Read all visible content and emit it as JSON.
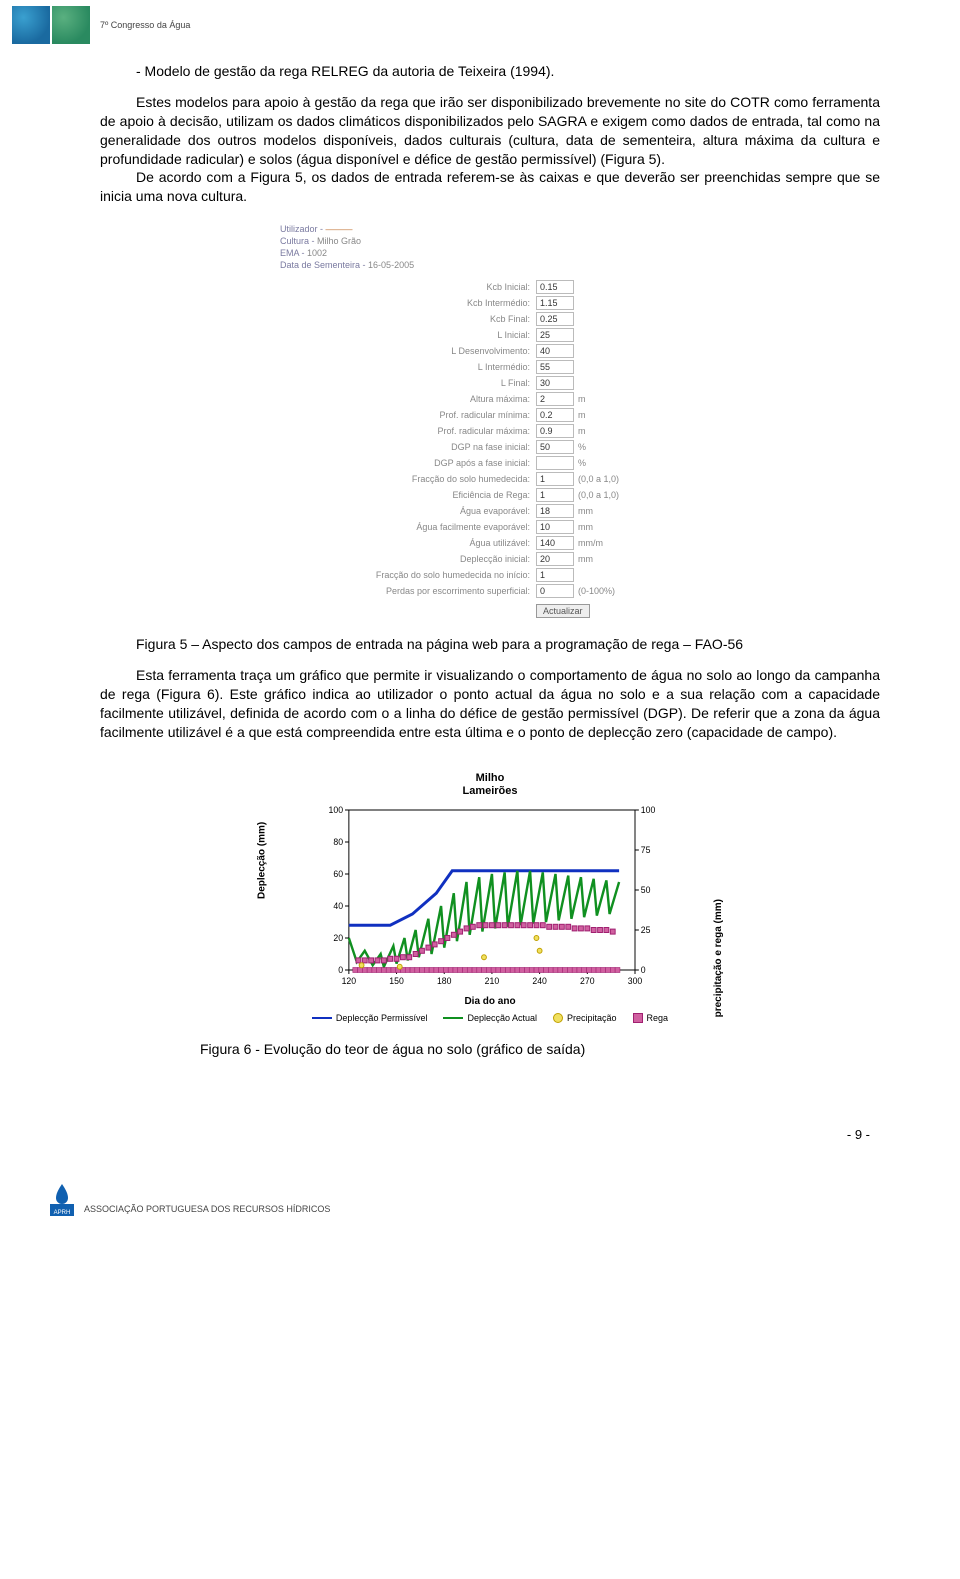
{
  "header": {
    "label": "7º Congresso da Água",
    "thumbs": [
      {
        "bg": "#1a6aa0",
        "overlay": "#3aa0d0"
      },
      {
        "bg": "#2a8a60",
        "overlay": "#5ab080"
      }
    ]
  },
  "body": {
    "bullet": "- Modelo de gestão da rega RELREG da autoria de Teixeira (1994).",
    "p1": "Estes modelos para apoio à gestão da rega que irão ser disponibilizado brevemente no site do COTR como ferramenta de apoio à decisão, utilizam os dados climáticos disponibilizados pelo SAGRA e exigem como dados de entrada, tal como na generalidade dos outros modelos disponíveis, dados culturais (cultura, data de sementeira, altura máxima da cultura e profundidade radicular) e solos (água disponível e défice de gestão permissível) (Figura 5).",
    "p2": "De acordo com a Figura 5, os dados de entrada referem-se às caixas e que deverão ser preenchidas sempre que se inicia uma nova cultura.",
    "fig5_caption": "Figura 5 – Aspecto dos campos de entrada na página web para a programação de rega – FAO-56",
    "p3": "Esta ferramenta traça um gráfico que permite ir visualizando o comportamento de água no solo ao longo da campanha de rega (Figura 6). Este gráfico indica ao utilizador o ponto actual da água no solo e a sua relação com a capacidade facilmente utilizável, definida de acordo com o a linha do défice de gestão permissível (DGP). De referir que a zona da água facilmente utilizável é a que está compreendida entre esta última e o ponto de deplecção zero (capacidade de campo).",
    "fig6_caption": "Figura 6 - Evolução do teor de água no solo (gráfico de saída)"
  },
  "form": {
    "meta": [
      {
        "label": "Utilizador - ",
        "value": "———",
        "cls": "val"
      },
      {
        "label": "Cultura - ",
        "value": "Milho Grão",
        "cls": "val2"
      },
      {
        "label": "EMA - ",
        "value": "1002",
        "cls": "val2"
      },
      {
        "label": "Data de Sementeira - ",
        "value": "16-05-2005",
        "cls": "val2"
      }
    ],
    "rows": [
      {
        "label": "Kcb Inicial:",
        "value": "0.15",
        "unit": ""
      },
      {
        "label": "Kcb Intermédio:",
        "value": "1.15",
        "unit": ""
      },
      {
        "label": "Kcb Final:",
        "value": "0.25",
        "unit": ""
      },
      {
        "label": "L Inicial:",
        "value": "25",
        "unit": ""
      },
      {
        "label": "L Desenvolvimento:",
        "value": "40",
        "unit": ""
      },
      {
        "label": "L Intermédio:",
        "value": "55",
        "unit": ""
      },
      {
        "label": "L Final:",
        "value": "30",
        "unit": ""
      },
      {
        "label": "Altura máxima:",
        "value": "2",
        "unit": "m"
      },
      {
        "label": "Prof. radicular mínima:",
        "value": "0.2",
        "unit": "m"
      },
      {
        "label": "Prof. radicular máxima:",
        "value": "0.9",
        "unit": "m"
      },
      {
        "label": "DGP na fase inicial:",
        "value": "50",
        "unit": "%"
      },
      {
        "label": "DGP após a fase inicial:",
        "value": "",
        "unit": "%"
      },
      {
        "label": "Fracção do solo humedecida:",
        "value": "1",
        "unit": "(0,0 a 1,0)"
      },
      {
        "label": "Eficiência de Rega:",
        "value": "1",
        "unit": "(0,0 a 1,0)"
      },
      {
        "label": "Água evaporável:",
        "value": "18",
        "unit": "mm"
      },
      {
        "label": "Água facilmente evaporável:",
        "value": "10",
        "unit": "mm"
      },
      {
        "label": "Água utilizável:",
        "value": "140",
        "unit": "mm/m"
      },
      {
        "label": "Deplecção inicial:",
        "value": "20",
        "unit": "mm"
      },
      {
        "label": "Fracção do solo humedecida no início:",
        "value": "1",
        "unit": ""
      },
      {
        "label": "Perdas por escorrimento superficial:",
        "value": "0",
        "unit": "(0-100%)"
      }
    ],
    "button": "Actualizar"
  },
  "chart": {
    "title_line1": "Milho",
    "title_line2": "Lameirões",
    "y_left_label": "Deplecção (mm)",
    "y_right_label": "precipitação e rega (mm)",
    "x_label": "Dia do ano",
    "x_min": 120,
    "x_max": 300,
    "y_left_min": 0,
    "y_left_max": 100,
    "y_right_min": 0,
    "y_right_max": 100,
    "x_ticks": [
      120,
      150,
      180,
      210,
      240,
      270,
      300
    ],
    "y_left_ticks": [
      0,
      20,
      40,
      60,
      80,
      100
    ],
    "y_right_ticks": [
      0,
      25,
      50,
      75,
      100
    ],
    "colors": {
      "perm": "#1030c0",
      "actual": "#109020",
      "precip_stroke": "#c0a000",
      "precip_fill": "#f0e060",
      "rega_stroke": "#a02070",
      "rega_fill": "#d060a0",
      "axis": "#000000",
      "grid": "#000000"
    },
    "line_width_perm": 3,
    "line_width_actual": 2.5,
    "marker_size": 5,
    "series_perm": [
      {
        "x": 120,
        "y": 28
      },
      {
        "x": 145,
        "y": 28
      },
      {
        "x": 146,
        "y": 28
      },
      {
        "x": 160,
        "y": 35
      },
      {
        "x": 175,
        "y": 48
      },
      {
        "x": 185,
        "y": 62
      },
      {
        "x": 186,
        "y": 62
      },
      {
        "x": 290,
        "y": 62
      }
    ],
    "series_actual": [
      {
        "x": 120,
        "y": 20
      },
      {
        "x": 125,
        "y": 5
      },
      {
        "x": 130,
        "y": 12
      },
      {
        "x": 135,
        "y": 3
      },
      {
        "x": 140,
        "y": 10
      },
      {
        "x": 142,
        "y": 2
      },
      {
        "x": 148,
        "y": 15
      },
      {
        "x": 150,
        "y": 4
      },
      {
        "x": 155,
        "y": 20
      },
      {
        "x": 157,
        "y": 6
      },
      {
        "x": 162,
        "y": 25
      },
      {
        "x": 164,
        "y": 8
      },
      {
        "x": 170,
        "y": 32
      },
      {
        "x": 172,
        "y": 10
      },
      {
        "x": 178,
        "y": 40
      },
      {
        "x": 180,
        "y": 14
      },
      {
        "x": 186,
        "y": 48
      },
      {
        "x": 188,
        "y": 18
      },
      {
        "x": 194,
        "y": 55
      },
      {
        "x": 196,
        "y": 22
      },
      {
        "x": 202,
        "y": 58
      },
      {
        "x": 204,
        "y": 24
      },
      {
        "x": 210,
        "y": 60
      },
      {
        "x": 212,
        "y": 26
      },
      {
        "x": 218,
        "y": 61
      },
      {
        "x": 220,
        "y": 27
      },
      {
        "x": 226,
        "y": 62
      },
      {
        "x": 228,
        "y": 28
      },
      {
        "x": 234,
        "y": 62
      },
      {
        "x": 236,
        "y": 29
      },
      {
        "x": 242,
        "y": 61
      },
      {
        "x": 244,
        "y": 30
      },
      {
        "x": 250,
        "y": 60
      },
      {
        "x": 252,
        "y": 31
      },
      {
        "x": 258,
        "y": 59
      },
      {
        "x": 260,
        "y": 32
      },
      {
        "x": 266,
        "y": 58
      },
      {
        "x": 268,
        "y": 33
      },
      {
        "x": 274,
        "y": 57
      },
      {
        "x": 276,
        "y": 34
      },
      {
        "x": 282,
        "y": 56
      },
      {
        "x": 284,
        "y": 35
      },
      {
        "x": 290,
        "y": 55
      }
    ],
    "series_precip": [
      {
        "x": 128,
        "y": 3
      },
      {
        "x": 152,
        "y": 2
      },
      {
        "x": 205,
        "y": 8
      },
      {
        "x": 238,
        "y": 20
      },
      {
        "x": 240,
        "y": 12
      }
    ],
    "series_rega": [
      {
        "x": 126,
        "y": 6
      },
      {
        "x": 130,
        "y": 6
      },
      {
        "x": 134,
        "y": 6
      },
      {
        "x": 138,
        "y": 6
      },
      {
        "x": 142,
        "y": 6
      },
      {
        "x": 146,
        "y": 7
      },
      {
        "x": 150,
        "y": 7
      },
      {
        "x": 154,
        "y": 8
      },
      {
        "x": 158,
        "y": 8
      },
      {
        "x": 162,
        "y": 10
      },
      {
        "x": 166,
        "y": 12
      },
      {
        "x": 170,
        "y": 14
      },
      {
        "x": 174,
        "y": 16
      },
      {
        "x": 178,
        "y": 18
      },
      {
        "x": 182,
        "y": 20
      },
      {
        "x": 186,
        "y": 22
      },
      {
        "x": 190,
        "y": 24
      },
      {
        "x": 194,
        "y": 26
      },
      {
        "x": 198,
        "y": 27
      },
      {
        "x": 202,
        "y": 28
      },
      {
        "x": 206,
        "y": 28
      },
      {
        "x": 210,
        "y": 28
      },
      {
        "x": 214,
        "y": 28
      },
      {
        "x": 218,
        "y": 28
      },
      {
        "x": 222,
        "y": 28
      },
      {
        "x": 226,
        "y": 28
      },
      {
        "x": 230,
        "y": 28
      },
      {
        "x": 234,
        "y": 28
      },
      {
        "x": 238,
        "y": 28
      },
      {
        "x": 242,
        "y": 28
      },
      {
        "x": 246,
        "y": 27
      },
      {
        "x": 250,
        "y": 27
      },
      {
        "x": 254,
        "y": 27
      },
      {
        "x": 258,
        "y": 27
      },
      {
        "x": 262,
        "y": 26
      },
      {
        "x": 266,
        "y": 26
      },
      {
        "x": 270,
        "y": 26
      },
      {
        "x": 274,
        "y": 25
      },
      {
        "x": 278,
        "y": 25
      },
      {
        "x": 282,
        "y": 25
      },
      {
        "x": 286,
        "y": 24
      }
    ],
    "legend": [
      {
        "label": "Deplecção Permissível",
        "type": "line",
        "color": "#1030c0"
      },
      {
        "label": "Deplecção Actual",
        "type": "line",
        "color": "#109020"
      },
      {
        "label": "Precipitação",
        "type": "circle",
        "stroke": "#c0a000",
        "fill": "#f0e060"
      },
      {
        "label": "Rega",
        "type": "square",
        "stroke": "#a02070",
        "fill": "#d060a0"
      }
    ]
  },
  "pagenum": "- 9 -",
  "footer": {
    "text": "ASSOCIAÇÃO PORTUGUESA DOS RECURSOS HÍDRICOS",
    "logo_color": "#1060b0",
    "logo_label": "APRH"
  }
}
